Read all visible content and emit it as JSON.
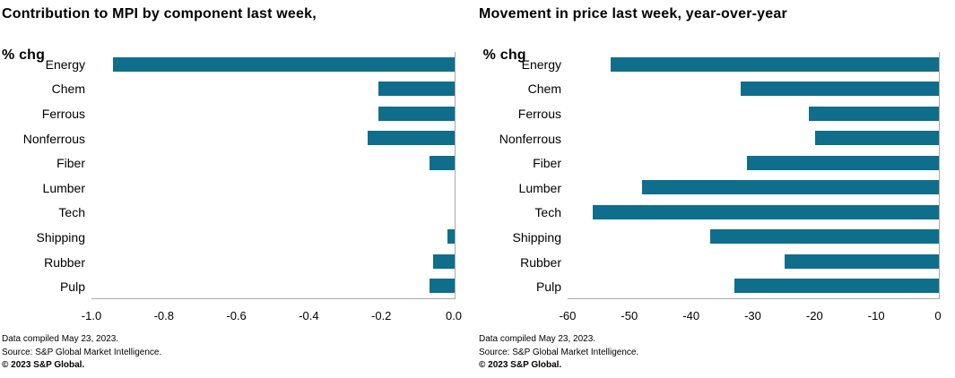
{
  "colors": {
    "bar": "#0e6e8c",
    "axis_line": "#a9a9a9",
    "text": "#000000",
    "background": "#ffffff"
  },
  "chart_data": [
    {
      "type": "bar",
      "orientation": "horizontal",
      "title": "Contribution to MPI by component last week, % chg",
      "title_lines": [
        "Contribution to MPI by component last week,",
        "% chg"
      ],
      "categories": [
        "Energy",
        "Chem",
        "Ferrous",
        "Nonferrous",
        "Fiber",
        "Lumber",
        "Tech",
        "Shipping",
        "Rubber",
        "Pulp"
      ],
      "values": [
        -0.94,
        -0.21,
        -0.21,
        -0.24,
        -0.07,
        0.0,
        0.0,
        -0.02,
        -0.06,
        -0.07
      ],
      "xlim": [
        -1.0,
        0.0
      ],
      "x_ticks": [
        "-1.0",
        "-0.8",
        "-0.6",
        "-0.4",
        "-0.2",
        "0.0"
      ],
      "grid": false,
      "legend": false,
      "bar_color": "#0e6e8c",
      "footnotes": [
        "Data compiled May 23, 2023.",
        "Source: S&P Global Market Intelligence.",
        "© 2023 S&P Global."
      ]
    },
    {
      "type": "bar",
      "orientation": "horizontal",
      "title": "Movement in price last week, year-over-year % chg",
      "title_lines": [
        "Movement in price last week, year-over-year",
        " % chg"
      ],
      "categories": [
        "Energy",
        "Chem",
        "Ferrous",
        "Nonferrous",
        "Fiber",
        "Lumber",
        "Tech",
        "Shipping",
        "Rubber",
        "Pulp"
      ],
      "values": [
        -53,
        -32,
        -21,
        -20,
        -31,
        -48,
        -56,
        -37,
        -25,
        -33
      ],
      "xlim": [
        -60,
        0
      ],
      "x_ticks": [
        "-60",
        "-50",
        "-40",
        "-30",
        "-20",
        "-10",
        "0"
      ],
      "grid": false,
      "legend": false,
      "bar_color": "#0e6e8c",
      "footnotes": [
        "Data compiled May 23, 2023.",
        "Source: S&P Global Market Intelligence.",
        "© 2023 S&P Global."
      ]
    }
  ]
}
